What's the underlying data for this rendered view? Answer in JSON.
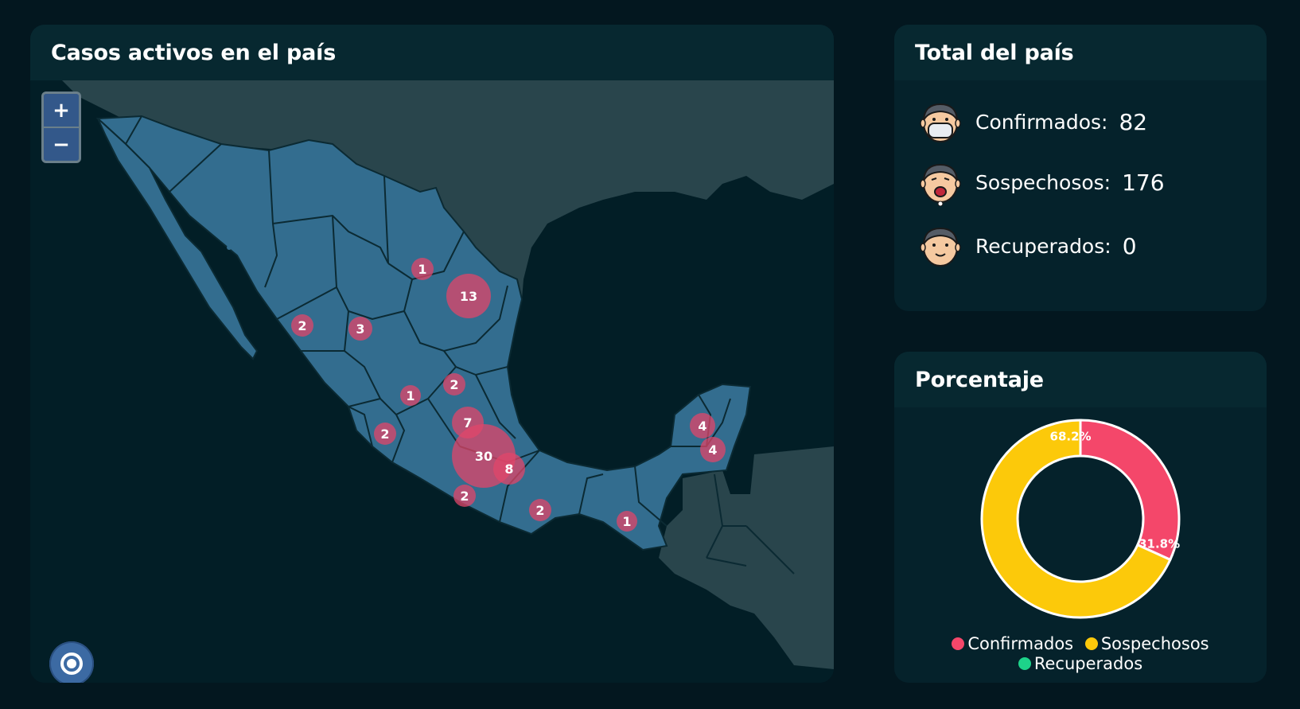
{
  "map_panel": {
    "title": "Casos activos en el país",
    "zoom_in_label": "+",
    "zoom_out_label": "−",
    "markers": [
      {
        "value": "1"
      },
      {
        "value": "13"
      },
      {
        "value": "2"
      },
      {
        "value": "3"
      },
      {
        "value": "2"
      },
      {
        "value": "1"
      },
      {
        "value": "7"
      },
      {
        "value": "2"
      },
      {
        "value": "30"
      },
      {
        "value": "8"
      },
      {
        "value": "2"
      },
      {
        "value": "2"
      },
      {
        "value": "1"
      },
      {
        "value": "4"
      },
      {
        "value": "4"
      }
    ]
  },
  "total_panel": {
    "title": "Total del país",
    "stats": [
      {
        "label": "Confirmados:",
        "value": "82",
        "icon": "masked-face-icon"
      },
      {
        "label": "Sospechosos:",
        "value": "176",
        "icon": "sick-face-icon"
      },
      {
        "label": "Recuperados:",
        "value": "0",
        "icon": "healthy-face-icon"
      }
    ]
  },
  "percent_panel": {
    "title": "Porcentaje"
  },
  "chart_data": {
    "type": "pie",
    "title": "Porcentaje",
    "categories": [
      "Confirmados",
      "Sospechosos",
      "Recuperados"
    ],
    "values": [
      31.8,
      68.2,
      0
    ],
    "labels": [
      "31.8%",
      "68.2%",
      ""
    ],
    "colors": [
      "#f4476a",
      "#fcc90a",
      "#1dd38a"
    ],
    "legend": "bottom"
  }
}
